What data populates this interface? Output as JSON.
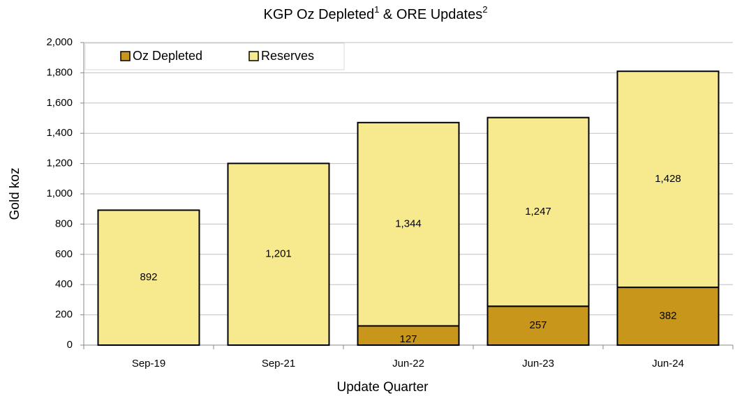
{
  "chart_data": {
    "type": "stacked_bar",
    "title": [
      "KGP Oz Depleted",
      "1",
      " & ORE Updates",
      "2"
    ],
    "x_label": "Update Quarter",
    "y_label": "Gold koz",
    "categories": [
      "Sep-19",
      "Sep-21",
      "Jun-22",
      "Jun-23",
      "Jun-24"
    ],
    "series": [
      {
        "name": "Oz Depleted",
        "color": "#c8961a",
        "values": [
          null,
          null,
          127,
          257,
          382
        ]
      },
      {
        "name": "Reserves",
        "color": "#f7e98e",
        "values": [
          892,
          1201,
          1344,
          1247,
          1428
        ],
        "value_labels": [
          "892",
          "1,201",
          "1,344",
          "1,247",
          "1,428"
        ]
      }
    ],
    "ylim": [
      0,
      2000
    ],
    "yticks": [
      0,
      200,
      400,
      600,
      800,
      {
        "value": 1000,
        "label": "1,000"
      },
      {
        "value": 1200,
        "label": "1,200"
      },
      {
        "value": 1400,
        "label": "1,400"
      },
      {
        "value": 1600,
        "label": "1,600"
      },
      {
        "value": 1800,
        "label": "1,800"
      },
      {
        "value": 2000,
        "label": "2,000"
      }
    ],
    "grid": true,
    "legend": "top-left"
  }
}
